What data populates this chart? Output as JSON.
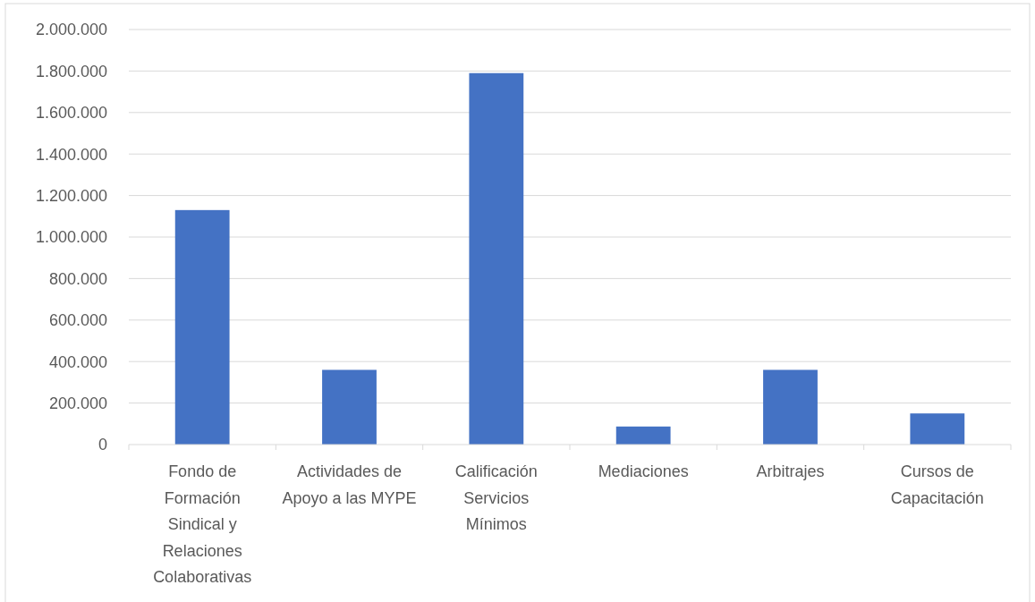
{
  "chart_data": {
    "type": "bar",
    "categories": [
      "Fondo de Formación Sindical y Relaciones Colaborativas",
      "Actividades de Apoyo a las MYPE",
      "Calificación Servicios Mínimos",
      "Mediaciones",
      "Arbitrajes",
      "Cursos de Capacitación"
    ],
    "values": [
      1130000,
      360000,
      1790000,
      87000,
      360000,
      150000
    ],
    "color": "#4472c4",
    "ylim": [
      0,
      2000000
    ],
    "yticks": [
      {
        "value": 0,
        "label": "0"
      },
      {
        "value": 200000,
        "label": "200.000"
      },
      {
        "value": 400000,
        "label": "400.000"
      },
      {
        "value": 600000,
        "label": "600.000"
      },
      {
        "value": 800000,
        "label": "800.000"
      },
      {
        "value": 1000000,
        "label": "1.000.000"
      },
      {
        "value": 1200000,
        "label": "1.200.000"
      },
      {
        "value": 1400000,
        "label": "1.400.000"
      },
      {
        "value": 1600000,
        "label": "1.600.000"
      },
      {
        "value": 1800000,
        "label": "1.800.000"
      },
      {
        "value": 2000000,
        "label": "2.000.000"
      }
    ],
    "grid": "y"
  }
}
